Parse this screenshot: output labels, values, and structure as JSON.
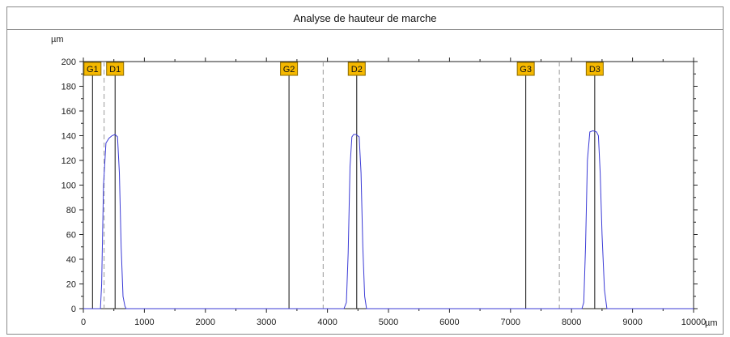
{
  "window": {
    "title": "Analyse de hauteur de marche"
  },
  "chart_data": {
    "type": "line",
    "title": "Analyse de hauteur de marche",
    "xlabel": "",
    "ylabel": "",
    "x_unit": "µm",
    "y_unit": "µm",
    "xlim": [
      0,
      10000
    ],
    "ylim": [
      0,
      200
    ],
    "x_ticks": [
      0,
      1000,
      2000,
      3000,
      4000,
      5000,
      6000,
      7000,
      8000,
      9000,
      10000
    ],
    "y_ticks": [
      0,
      20,
      40,
      60,
      80,
      100,
      120,
      140,
      160,
      180,
      200
    ],
    "grid": false,
    "line_color": "#3b3bd6",
    "marker_color": "#f5b800",
    "series": [
      {
        "x": [
          0,
          280,
          300,
          330,
          370,
          420,
          470,
          520,
          560,
          590,
          620,
          650,
          680,
          700,
          4270,
          4310,
          4340,
          4370,
          4400,
          4430,
          4470,
          4520,
          4550,
          4580,
          4610,
          4640,
          8170,
          8200,
          8230,
          8260,
          8300,
          8350,
          8410,
          8440,
          8470,
          8500,
          8540,
          8580,
          10000
        ],
        "y": [
          0,
          0,
          20,
          100,
          134,
          138,
          140,
          141,
          139,
          110,
          50,
          10,
          2,
          0,
          0,
          5,
          45,
          115,
          139,
          141,
          141,
          139,
          110,
          50,
          10,
          0,
          0,
          5,
          50,
          120,
          143,
          144,
          143,
          140,
          110,
          60,
          15,
          0,
          0
        ]
      }
    ],
    "markers": [
      {
        "label": "G1",
        "x": 150
      },
      {
        "label": "D1",
        "x": 520
      },
      {
        "label": "G2",
        "x": 3370
      },
      {
        "label": "D2",
        "x": 4480
      },
      {
        "label": "G3",
        "x": 7250
      },
      {
        "label": "D3",
        "x": 8380
      }
    ],
    "dashed_lines": [
      {
        "x": 340
      },
      {
        "x": 3930
      },
      {
        "x": 7800
      }
    ]
  }
}
